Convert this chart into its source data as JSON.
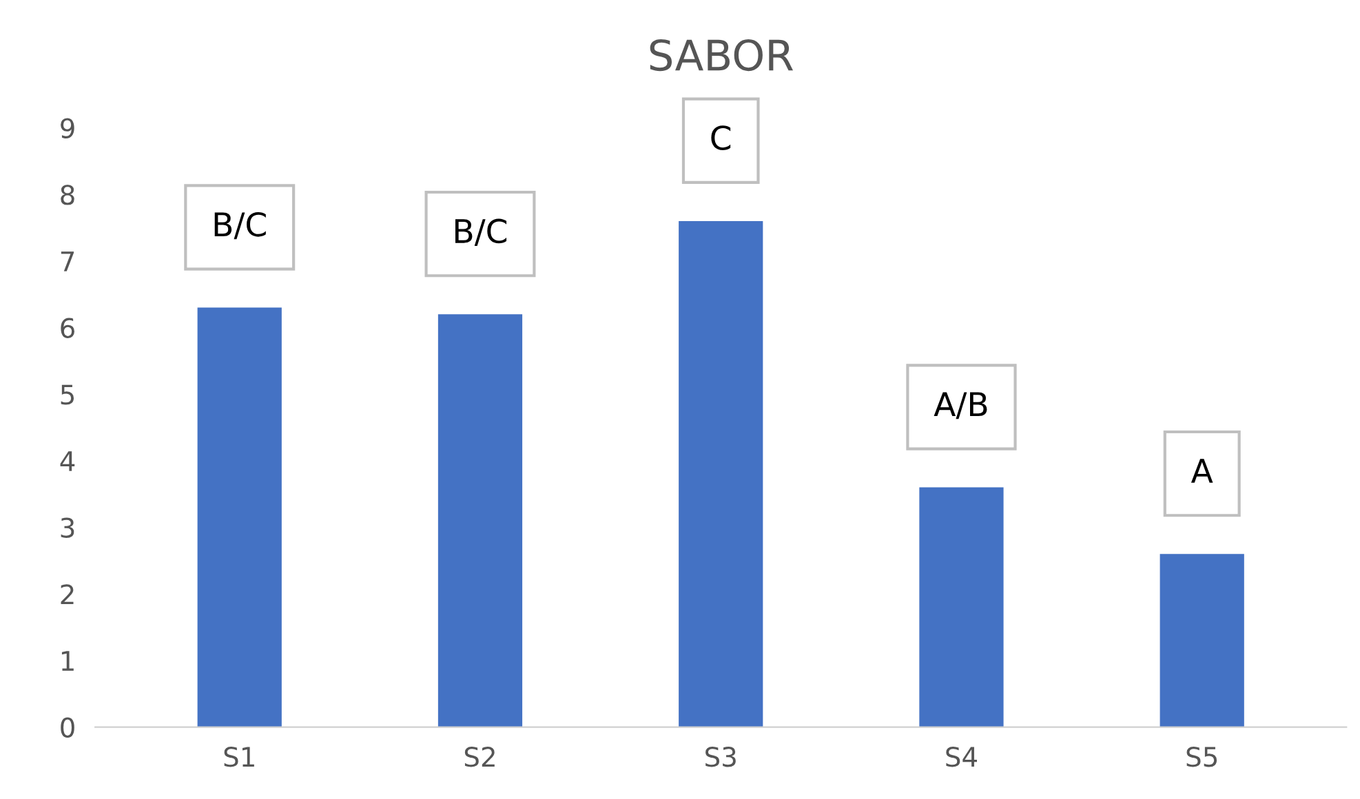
{
  "chart_data": {
    "type": "bar",
    "title": "SABOR",
    "categories": [
      "S1",
      "S2",
      "S3",
      "S4",
      "S5"
    ],
    "values": [
      6.3,
      6.2,
      7.6,
      3.6,
      2.6
    ],
    "color": "#4472c4",
    "ylim": [
      0,
      9
    ],
    "yticks": [
      0,
      1,
      2,
      3,
      4,
      5,
      6,
      7,
      8,
      9
    ],
    "grid": false,
    "annotations": [
      {
        "text": "B/C",
        "x": "S1",
        "y": 6.3
      },
      {
        "text": "B/C",
        "x": "S2",
        "y": 6.2
      },
      {
        "text": "C",
        "x": "S3",
        "y": 7.6
      },
      {
        "text": "A/B",
        "x": "S4",
        "y": 3.6
      },
      {
        "text": "A",
        "x": "S5",
        "y": 2.6
      }
    ]
  }
}
